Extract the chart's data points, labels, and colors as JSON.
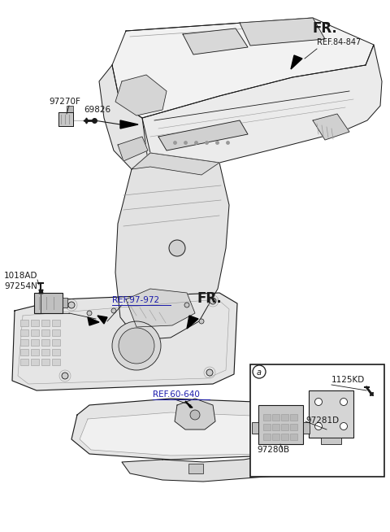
{
  "bg_color": "#ffffff",
  "line_color": "#1a1a1a",
  "gray_color": "#999999",
  "mid_gray": "#bbbbbb",
  "light_gray": "#e0e0e0",
  "labels": {
    "FR_top": "FR.",
    "ref_84_847": "REF.84-847",
    "part_97270F": "97270F",
    "part_69826": "69826",
    "part_1018AD": "1018AD",
    "part_97254N": "97254N",
    "ref_97_972": "REF.97-972",
    "FR_mid": "FR.",
    "ref_60_640": "REF.60-640",
    "part_1125KD": "1125KD",
    "part_97281D": "97281D",
    "part_97280B": "97280B",
    "circle_a1": "a",
    "circle_a2": "a"
  },
  "fig_width": 4.8,
  "fig_height": 6.54,
  "dpi": 100
}
